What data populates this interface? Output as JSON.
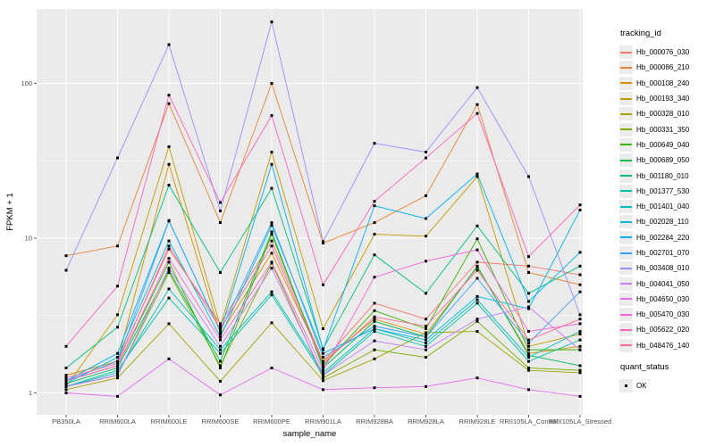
{
  "figure": {
    "y_axis": {
      "label": "FPKM + 1",
      "tick_labels": [
        "1",
        "10",
        "100"
      ],
      "tick_values": [
        1,
        10,
        100
      ],
      "minor_tick_values": [
        3.1623,
        31.623
      ]
    },
    "x_axis": {
      "label": "sample_name"
    },
    "colors": {
      "panel_bg": "#EBEBEB",
      "grid": "#FFFFFF",
      "axis_text": "#4D4D4D",
      "point": "#000000",
      "legend_key_bg": "#ECECEC"
    }
  },
  "legend": {
    "tracking_title": "tracking_id",
    "quant_title": "quant_status",
    "quant_items": [
      {
        "label": "OK",
        "marker": "black-square"
      }
    ]
  },
  "chart_data": {
    "type": "line",
    "title": "",
    "xlabel": "sample_name",
    "ylabel": "FPKM + 1",
    "y_scale": "log10",
    "ylim": [
      0.9,
      305
    ],
    "grid": true,
    "legend_position": "right",
    "point_marker": "black square (quant_status = OK)",
    "categories": [
      "PB350LA",
      "RRIM600LA",
      "RRIM600LE",
      "RRIM600SE",
      "RRIM600PE",
      "RRIM901LA",
      "RRIM928BA",
      "RRIM928LA",
      "RRIM928LE",
      "RRII105LA_Control",
      "RRII105LA_Stressed"
    ],
    "series": [
      {
        "name": "Hb_000076_030",
        "color": "#F8766D",
        "values": [
          1.3,
          1.6,
          8.5,
          2.8,
          9.6,
          1.6,
          3.8,
          3.0,
          7.0,
          6.6,
          5.8
        ]
      },
      {
        "name": "Hb_000086_210",
        "color": "#EA8331",
        "values": [
          7.7,
          8.9,
          74,
          12.6,
          100,
          9.3,
          12.6,
          18.8,
          73,
          6.0,
          5.0
        ]
      },
      {
        "name": "Hb_000108_240",
        "color": "#D89000",
        "values": [
          1.3,
          1.6,
          30,
          2.4,
          8.0,
          1.6,
          3.0,
          2.4,
          6.5,
          1.8,
          2.0
        ]
      },
      {
        "name": "Hb_000193_340",
        "color": "#C09B00",
        "values": [
          1.1,
          3.2,
          39,
          2.7,
          36,
          2.6,
          10.6,
          10.3,
          25,
          2.0,
          2.4
        ]
      },
      {
        "name": "Hb_000328_010",
        "color": "#A3A500",
        "values": [
          1.05,
          1.25,
          2.8,
          1.19,
          2.84,
          1.2,
          1.66,
          2.45,
          2.5,
          1.4,
          1.35
        ]
      },
      {
        "name": "Hb_000331_350",
        "color": "#7CAE00",
        "values": [
          1.1,
          1.3,
          6.0,
          1.5,
          6.9,
          1.25,
          1.9,
          1.7,
          2.9,
          1.45,
          1.4
        ]
      },
      {
        "name": "Hb_000649_040",
        "color": "#39B600",
        "values": [
          1.2,
          1.5,
          7.0,
          1.45,
          10.6,
          1.5,
          3.4,
          2.6,
          9.9,
          1.9,
          1.9
        ]
      },
      {
        "name": "Hb_000689_050",
        "color": "#00BB4E",
        "values": [
          1.15,
          1.45,
          6.2,
          1.6,
          11.0,
          1.45,
          2.9,
          2.3,
          6.6,
          1.75,
          1.5
        ]
      },
      {
        "name": "Hb_001180_010",
        "color": "#00BF7D",
        "values": [
          1.45,
          2.66,
          22,
          6.0,
          21,
          1.93,
          7.8,
          4.4,
          12,
          4.4,
          6.6
        ]
      },
      {
        "name": "Hb_001377_530",
        "color": "#00C1A3",
        "values": [
          1.1,
          1.4,
          4.1,
          1.8,
          4.3,
          1.3,
          2.5,
          2.0,
          3.8,
          1.6,
          2.2
        ]
      },
      {
        "name": "Hb_001401_040",
        "color": "#00BFC4",
        "values": [
          1.1,
          1.35,
          4.7,
          1.9,
          4.5,
          1.35,
          2.6,
          2.1,
          4.0,
          1.7,
          2.5
        ]
      },
      {
        "name": "Hb_002028_110",
        "color": "#00BAE0",
        "values": [
          1.15,
          1.7,
          9.6,
          2.3,
          12.1,
          1.8,
          2.6,
          2.2,
          4.2,
          3.5,
          15.2
        ]
      },
      {
        "name": "Hb_002284_220",
        "color": "#00B0F6",
        "values": [
          1.2,
          1.8,
          13,
          2.5,
          30,
          1.9,
          16.2,
          13.4,
          26,
          3.9,
          8.1
        ]
      },
      {
        "name": "Hb_002701_070",
        "color": "#35A2FF",
        "values": [
          1.2,
          1.6,
          12.9,
          2.5,
          12.6,
          1.7,
          2.7,
          2.3,
          5.5,
          2.1,
          4.5
        ]
      },
      {
        "name": "Hb_003408_010",
        "color": "#9590FF",
        "values": [
          6.2,
          33,
          178,
          15,
          250,
          9.5,
          41,
          36,
          94,
          25,
          3.2
        ]
      },
      {
        "name": "Hb_004041_050",
        "color": "#C77CFF",
        "values": [
          1.1,
          1.3,
          6.4,
          2.0,
          6.4,
          1.3,
          2.17,
          1.9,
          3.0,
          3.6,
          1.9
        ]
      },
      {
        "name": "Hb_004650_030",
        "color": "#E76BF3",
        "values": [
          1.0,
          0.95,
          1.66,
          0.97,
          1.45,
          1.05,
          1.08,
          1.1,
          1.25,
          1.05,
          0.95
        ]
      },
      {
        "name": "Hb_005470_030",
        "color": "#FA62DB",
        "values": [
          1.2,
          1.5,
          7.4,
          2.2,
          7.0,
          1.4,
          5.6,
          7.1,
          8.4,
          2.5,
          2.8
        ]
      },
      {
        "name": "Hb_005622_020",
        "color": "#FF62BC",
        "values": [
          2.0,
          4.9,
          84,
          17,
          62,
          5.0,
          17.3,
          33,
          64,
          7.6,
          16.4
        ]
      },
      {
        "name": "Hb_048476_140",
        "color": "#FF6A98",
        "values": [
          1.25,
          1.55,
          8.9,
          2.6,
          8.9,
          1.55,
          3.1,
          2.7,
          6.2,
          2.2,
          3.0
        ]
      }
    ]
  }
}
